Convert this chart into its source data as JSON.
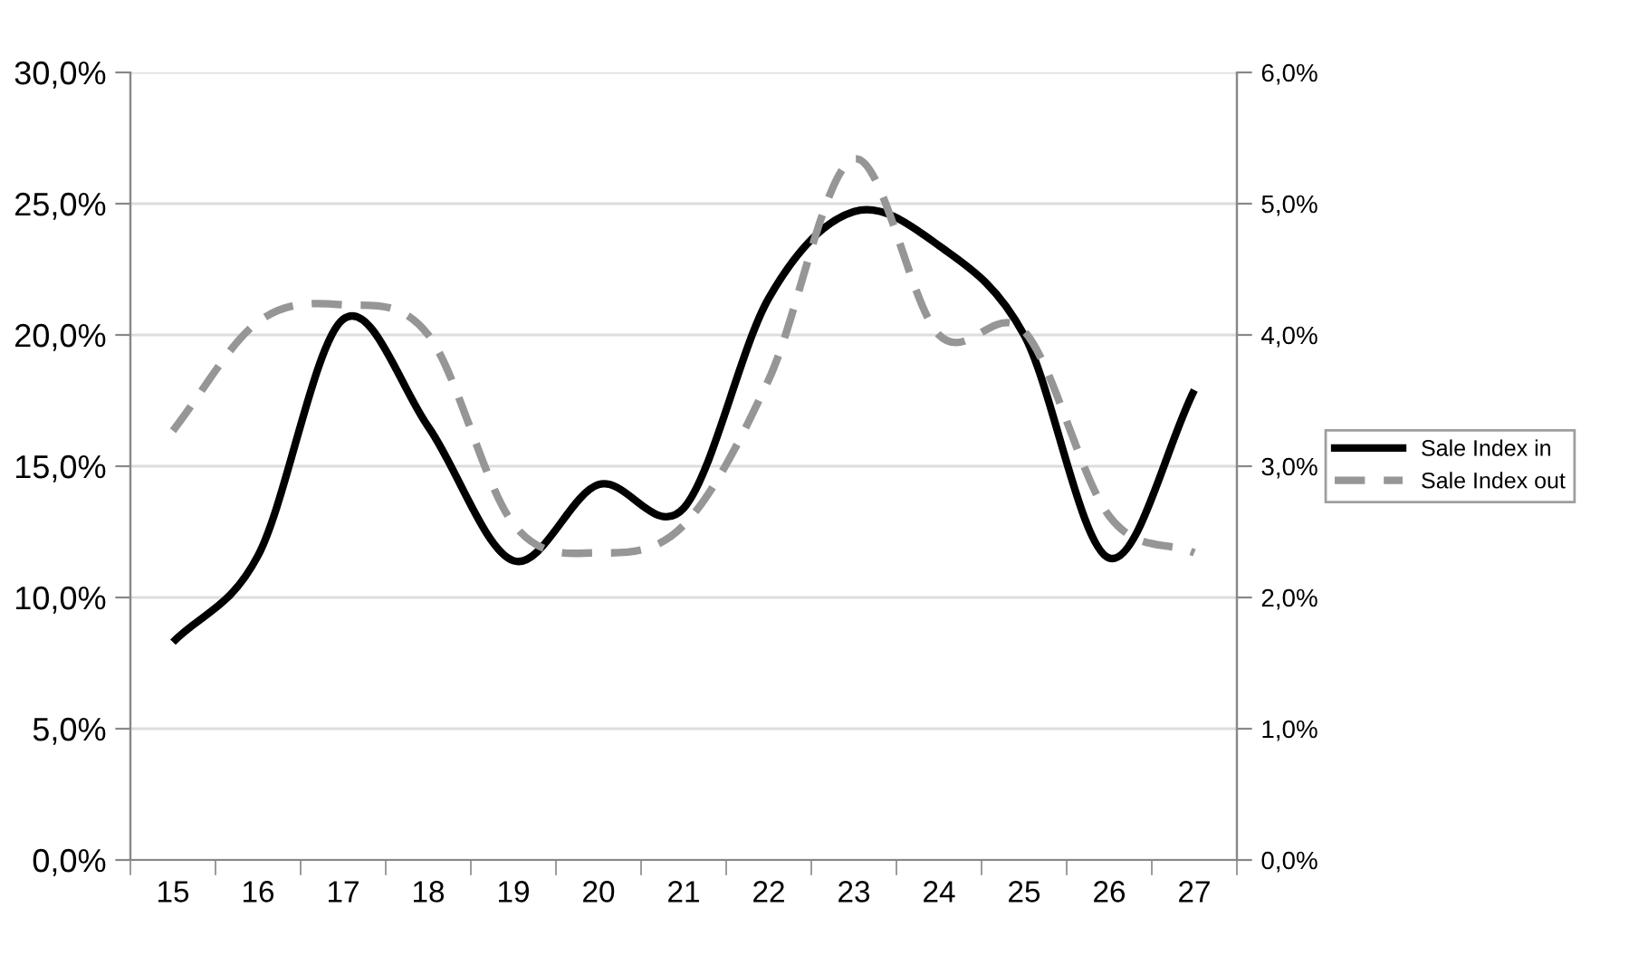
{
  "chart_data": {
    "type": "line",
    "categories": [
      "15",
      "16",
      "17",
      "18",
      "19",
      "20",
      "21",
      "22",
      "23",
      "24",
      "25",
      "26",
      "27"
    ],
    "series": [
      {
        "name": "Sale Index in",
        "color": "#000000",
        "line_style": "solid",
        "values": [
          8.3,
          11.6,
          20.6,
          16.5,
          11.4,
          14.3,
          13.4,
          21.4,
          24.7,
          23.4,
          20.0,
          11.5,
          17.9
        ]
      },
      {
        "name": "Sale Index out",
        "color": "#969696",
        "line_style": "dashed",
        "axis": "y2",
        "values": [
          3.27,
          4.1,
          4.23,
          4.0,
          2.56,
          2.34,
          2.55,
          3.66,
          5.34,
          4.0,
          4.03,
          2.62,
          2.34
        ]
      }
    ],
    "ylim": [
      0,
      30
    ],
    "yticks": [
      {
        "value": 0,
        "label": "0,0%"
      },
      {
        "value": 5,
        "label": "5,0%"
      },
      {
        "value": 10,
        "label": "10,0%"
      },
      {
        "value": 15,
        "label": "15,0%"
      },
      {
        "value": 20,
        "label": "20,0%"
      },
      {
        "value": 25,
        "label": "25,0%"
      },
      {
        "value": 30,
        "label": "30,0%"
      }
    ],
    "y2lim": [
      0,
      6
    ],
    "y2ticks": [
      {
        "value": 0,
        "label": "0,0%"
      },
      {
        "value": 1,
        "label": "1,0%"
      },
      {
        "value": 2,
        "label": "2,0%"
      },
      {
        "value": 3,
        "label": "3,0%"
      },
      {
        "value": 4,
        "label": "4,0%"
      },
      {
        "value": 5,
        "label": "5,0%"
      },
      {
        "value": 6,
        "label": "6,0%"
      }
    ],
    "grid": "y",
    "legend": "right"
  }
}
